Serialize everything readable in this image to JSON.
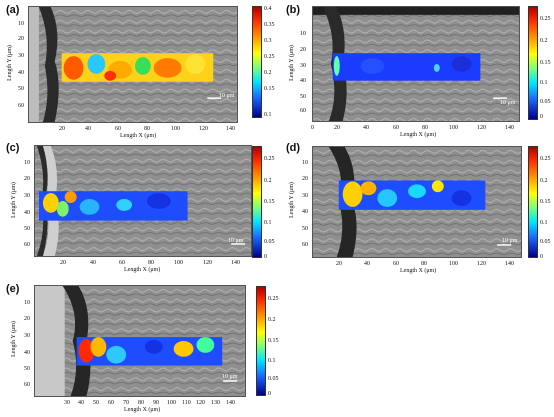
{
  "figure": {
    "scale_bar_label": "10 μm",
    "x_axis_label": "Length X (μm)",
    "y_axis_label": "Length Y (μm)"
  },
  "panels": [
    {
      "id": "a",
      "label": "(a)",
      "x_ticks": [
        "20",
        "40",
        "60",
        "80",
        "100",
        "120",
        "140"
      ],
      "y_ticks": [
        "10",
        "20",
        "30",
        "40",
        "50",
        "60"
      ],
      "colorbar_ticks": [
        "0.4",
        "0.35",
        "0.3",
        "0.25",
        "0.2",
        "0.15",
        "0.1"
      ],
      "heatmap": {
        "x_range_um": [
          20,
          125
        ],
        "y_range_um": [
          27,
          43
        ],
        "dominant_values": "0.25-0.4 (mostly yellow-orange)"
      }
    },
    {
      "id": "b",
      "label": "(b)",
      "x_ticks": [
        "0",
        "20",
        "40",
        "60",
        "80",
        "100",
        "120",
        "140"
      ],
      "y_ticks": [
        "10",
        "20",
        "30",
        "40",
        "50",
        "60"
      ],
      "colorbar_ticks": [
        "0.25",
        "0.2",
        "0.15",
        "0.1",
        "0.05",
        "0"
      ],
      "heatmap": {
        "x_range_um": [
          18,
          120
        ],
        "y_range_um": [
          27,
          43
        ],
        "dominant_values": "0.0-0.05 (mostly blue)"
      }
    },
    {
      "id": "c",
      "label": "(c)",
      "x_ticks": [
        "20",
        "40",
        "60",
        "80",
        "100",
        "120",
        "140"
      ],
      "y_ticks": [
        "10",
        "20",
        "30",
        "40",
        "50",
        "60"
      ],
      "colorbar_ticks": [
        "0.25",
        "0.2",
        "0.15",
        "0.1",
        "0.05",
        "0"
      ],
      "heatmap": {
        "x_range_um": [
          14,
          110
        ],
        "y_range_um": [
          32,
          50
        ],
        "dominant_values": "0.03-0.2 (blue with yellow near edge)"
      }
    },
    {
      "id": "d",
      "label": "(d)",
      "x_ticks": [
        "20",
        "40",
        "60",
        "80",
        "100",
        "120",
        "140"
      ],
      "y_ticks": [
        "10",
        "20",
        "30",
        "40",
        "50",
        "60"
      ],
      "colorbar_ticks": [
        "0.25",
        "0.2",
        "0.15",
        "0.1",
        "0.05",
        "0"
      ],
      "heatmap": {
        "x_range_um": [
          22,
          122
        ],
        "y_range_um": [
          22,
          40
        ],
        "dominant_values": "0.05-0.25 (yellow near edge, blue elsewhere)"
      }
    },
    {
      "id": "e",
      "label": "(e)",
      "x_ticks": [
        "30",
        "40",
        "50",
        "60",
        "70",
        "80",
        "90",
        "100",
        "110",
        "120",
        "130",
        "140"
      ],
      "y_ticks": [
        "10",
        "20",
        "30",
        "40",
        "50",
        "60"
      ],
      "colorbar_ticks": [
        "0.25",
        "0.2",
        "0.15",
        "0.1",
        "0.05",
        "0"
      ],
      "heatmap": {
        "x_range_um": [
          33,
          130
        ],
        "y_range_um": [
          32,
          50
        ],
        "dominant_values": "0.05-0.25 (red spot near edge, blue elsewhere)"
      }
    }
  ]
}
